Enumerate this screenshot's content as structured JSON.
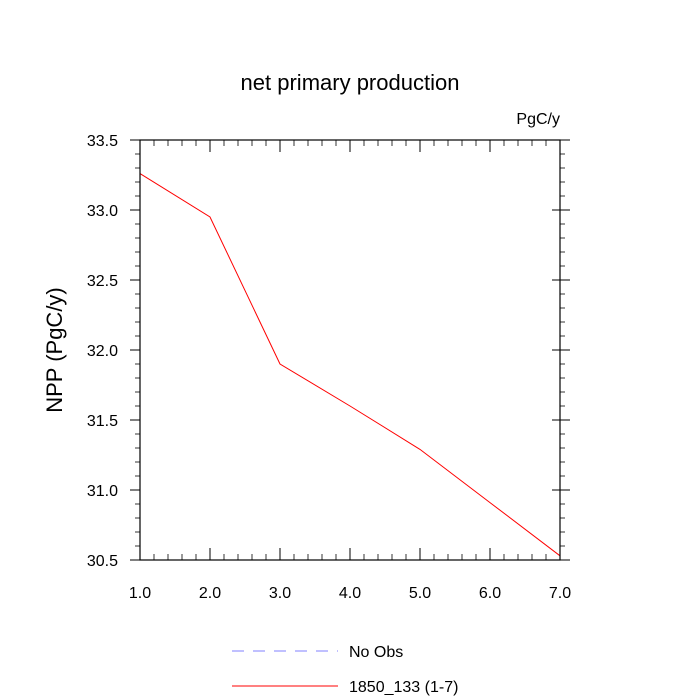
{
  "chart_data": {
    "type": "line",
    "title": "net primary production",
    "units_label": "PgC/y",
    "xlabel": "",
    "ylabel": "NPP  (PgC/y)",
    "xlim": [
      1.0,
      7.0
    ],
    "ylim": [
      30.5,
      33.5
    ],
    "x_ticks": [
      "1.0",
      "2.0",
      "3.0",
      "4.0",
      "5.0",
      "6.0",
      "7.0"
    ],
    "y_ticks": [
      "30.5",
      "31.0",
      "31.5",
      "32.0",
      "32.5",
      "33.0",
      "33.5"
    ],
    "series": [
      {
        "name": "1850_133 (1-7)",
        "color": "#ff0000",
        "style": "solid",
        "x": [
          1,
          2,
          3,
          4,
          5,
          6,
          7
        ],
        "values": [
          33.26,
          32.95,
          31.9,
          31.6,
          31.29,
          30.91,
          30.53
        ]
      },
      {
        "name": "No Obs",
        "color": "#8080ff",
        "style": "dashed",
        "x": [],
        "values": []
      }
    ],
    "legend": {
      "position": "bottom-center",
      "entries": [
        "No Obs",
        "1850_133 (1-7)"
      ]
    }
  }
}
